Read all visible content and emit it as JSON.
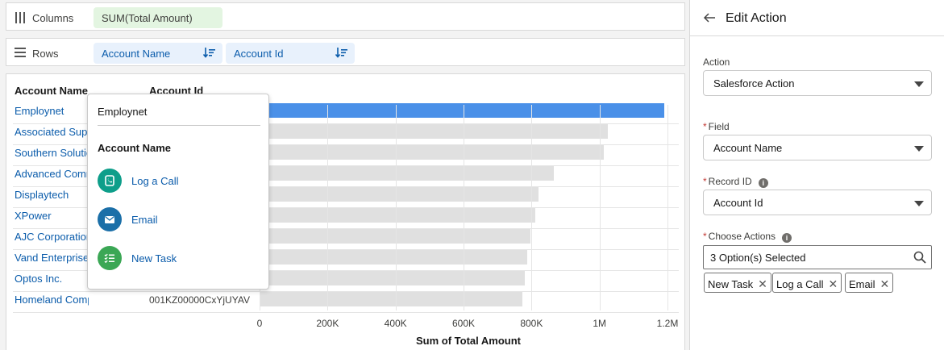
{
  "shelves": {
    "columns_label": "Columns",
    "columns_measure": "SUM(Total Amount)",
    "rows_label": "Rows",
    "rows_dims": [
      "Account Name",
      "Account Id"
    ]
  },
  "table": {
    "col_name": "Account Name",
    "col_id": "Account Id",
    "rows": [
      {
        "name": "Employnet",
        "id": ""
      },
      {
        "name": "Associated Supp",
        "id": ""
      },
      {
        "name": "Southern Solutio",
        "id": ""
      },
      {
        "name": "Advanced Comm",
        "id": ""
      },
      {
        "name": "Displaytech",
        "id": ""
      },
      {
        "name": "XPower",
        "id": ""
      },
      {
        "name": "AJC Corporation",
        "id": ""
      },
      {
        "name": "Vand Enterprise",
        "id": ""
      },
      {
        "name": "Optos Inc.",
        "id": ""
      },
      {
        "name": "Homeland Company",
        "id": "001KZ00000CxYjUYAV"
      }
    ]
  },
  "chart_data": {
    "type": "bar",
    "orientation": "horizontal",
    "categories": [
      "Employnet",
      "Associated Supp",
      "Southern Solutio",
      "Advanced Comm",
      "Displaytech",
      "XPower",
      "AJC Corporation",
      "Vand Enterprise",
      "Optos Inc.",
      "Homeland Company"
    ],
    "values": [
      1190000,
      1025000,
      1012000,
      865000,
      820000,
      812000,
      798000,
      787000,
      780000,
      772000
    ],
    "highlighted_index": 0,
    "xlabel": "Sum of Total Amount",
    "xlim": [
      0,
      1200000
    ],
    "ticks": [
      "0",
      "200K",
      "400K",
      "600K",
      "800K",
      "1M",
      "1.2M"
    ],
    "grid": true,
    "colors": {
      "highlight": "#4a90e8",
      "default": "#e0e0e0"
    }
  },
  "popover": {
    "title": "Employnet",
    "subtitle": "Account Name",
    "actions": [
      {
        "label": "Log a Call",
        "icon": "log-call-icon",
        "color": "#0e9e8a"
      },
      {
        "label": "Email",
        "icon": "email-icon",
        "color": "#1b6fa8"
      },
      {
        "label": "New Task",
        "icon": "task-icon",
        "color": "#3ba755"
      }
    ]
  },
  "sidebar": {
    "title": "Edit Action",
    "action_label": "Action",
    "action_value": "Salesforce Action",
    "field_label": "Field",
    "field_value": "Account Name",
    "record_label": "Record ID",
    "record_value": "Account Id",
    "choose_label": "Choose Actions",
    "choose_value": "3 Option(s) Selected",
    "chips": [
      "New Task",
      "Log a Call",
      "Email"
    ]
  }
}
